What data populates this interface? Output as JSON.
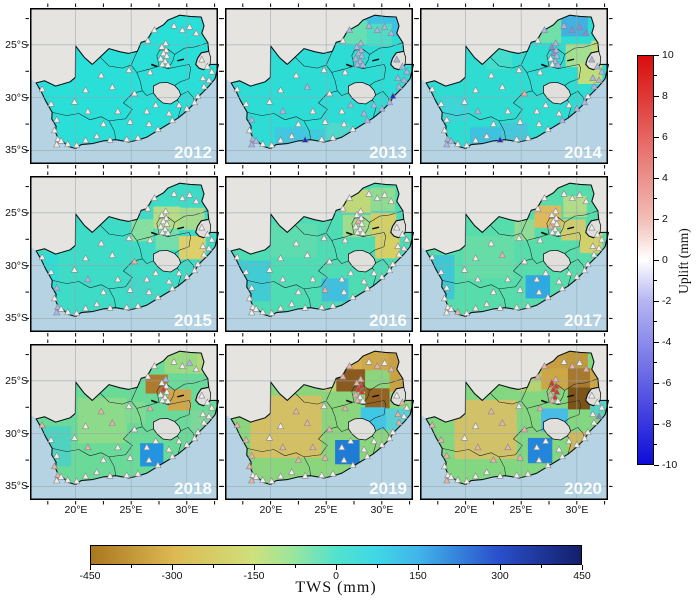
{
  "row_axis_labels": [
    "25°S",
    "30°S",
    "35°S"
  ],
  "col_axis_labels": [
    "20°E",
    "25°E",
    "30°E"
  ],
  "colors": {
    "ocean": "#b5d3e3",
    "neighbor_land": "#e5e4e0",
    "enclave_land": "#e0dfdb",
    "country_border": "#0b1418",
    "province_border": "#1c2428",
    "grid_line": "#97a3ad",
    "panel_frame": "#000000",
    "year_label": "rgba(255,255,255,0.92)",
    "station_stroke": "#87878a"
  },
  "station_palette": {
    "W": "#f1efe9",
    "L": "#a9b6e8",
    "P": "#8090dc",
    "B": "#1c2ec8",
    "K": "#e8b2a4",
    "R": "#d63824",
    "V": "#7788cc"
  },
  "stations": [
    [
      17.0,
      29.2
    ],
    [
      17.8,
      30.6
    ],
    [
      18.3,
      32.1
    ],
    [
      18.1,
      33.1
    ],
    [
      18.4,
      33.95
    ],
    [
      18.7,
      34.1
    ],
    [
      18.3,
      34.45
    ],
    [
      19.3,
      34.4
    ],
    [
      20.1,
      34.5
    ],
    [
      20.9,
      34.05
    ],
    [
      21.9,
      33.65
    ],
    [
      23.1,
      34.0
    ],
    [
      24.6,
      33.95
    ],
    [
      25.6,
      33.8
    ],
    [
      27.4,
      33.0
    ],
    [
      28.7,
      32.15
    ],
    [
      30.0,
      31.05
    ],
    [
      30.7,
      30.45
    ],
    [
      31.0,
      29.85
    ],
    [
      31.55,
      28.95
    ],
    [
      32.0,
      28.35
    ],
    [
      31.45,
      28.15
    ],
    [
      32.25,
      27.55
    ],
    [
      31.85,
      27.05
    ],
    [
      31.35,
      26.4
    ],
    [
      30.85,
      23.9
    ],
    [
      30.25,
      23.3
    ],
    [
      29.6,
      23.6
    ],
    [
      28.85,
      23.2
    ],
    [
      27.1,
      23.6
    ],
    [
      26.5,
      24.6
    ],
    [
      28.1,
      24.85
    ],
    [
      27.75,
      25.2
    ],
    [
      28.15,
      25.5
    ],
    [
      27.9,
      25.8
    ],
    [
      28.2,
      26.05
    ],
    [
      27.65,
      26.3
    ],
    [
      28.05,
      26.55
    ],
    [
      27.8,
      26.85
    ],
    [
      28.3,
      26.9
    ],
    [
      26.7,
      27.6
    ],
    [
      24.8,
      27.4
    ],
    [
      22.3,
      27.9
    ],
    [
      20.9,
      29.3
    ],
    [
      23.3,
      29.0
    ],
    [
      25.3,
      29.6
    ],
    [
      21.1,
      31.3
    ],
    [
      23.8,
      31.3
    ],
    [
      26.4,
      31.3
    ],
    [
      24.9,
      32.3
    ],
    [
      22.5,
      32.5
    ],
    [
      27.2,
      30.7
    ],
    [
      29.3,
      30.7
    ],
    [
      28.4,
      31.5
    ],
    [
      26.6,
      32.5
    ],
    [
      19.9,
      30.4
    ]
  ],
  "panels": [
    {
      "year": "2012",
      "base": "#29dfd8",
      "cells": [],
      "tri": {}
    },
    {
      "year": "2013",
      "base": "#2cdcd5",
      "cells": [
        [
          28.6,
          21.7,
          32.8,
          24.2,
          "#3ec2e2"
        ],
        [
          26.4,
          22.7,
          28.7,
          24.9,
          "#66dfb2"
        ],
        [
          28.7,
          23.0,
          30.9,
          25.1,
          "#4fdcc4"
        ],
        [
          20.4,
          32.8,
          23.1,
          35.3,
          "#43c6e0"
        ],
        [
          24.9,
          32.4,
          27.2,
          34.9,
          "#4fd8cc"
        ],
        [
          23.0,
          33.0,
          24.9,
          35.2,
          "#3eccdc"
        ]
      ],
      "tri": {
        "L": [
          2,
          4,
          5,
          6,
          15,
          16,
          17,
          19,
          20,
          21,
          22,
          23,
          24,
          25,
          26,
          27,
          28,
          29,
          31,
          32,
          33,
          34,
          35,
          36,
          37,
          38,
          39,
          44,
          46,
          51,
          52,
          53
        ],
        "B": [
          18,
          11
        ]
      }
    },
    {
      "year": "2014",
      "base": "#2fdcd2",
      "cells": [
        [
          28.6,
          21.7,
          31.0,
          24.2,
          "#42b0e0"
        ],
        [
          26.3,
          22.6,
          28.6,
          24.8,
          "#70dfa8"
        ],
        [
          29.0,
          24.9,
          31.3,
          27.1,
          "#a4de90"
        ],
        [
          31.3,
          24.6,
          32.7,
          26.7,
          "#c6dc78"
        ],
        [
          30.1,
          26.7,
          32.3,
          28.7,
          "#bfdd7e"
        ],
        [
          20.4,
          32.8,
          23.2,
          35.3,
          "#3fc2e0"
        ],
        [
          23.2,
          32.4,
          25.6,
          34.9,
          "#47c8da"
        ],
        [
          21.8,
          25.0,
          24.2,
          27.3,
          "#43ddcc"
        ],
        [
          17.9,
          29.9,
          20.3,
          32.2,
          "#3fd4d8"
        ]
      ],
      "tri": {
        "L": [
          4,
          5,
          6,
          15,
          16,
          17,
          19,
          20,
          21,
          22,
          23,
          24,
          28,
          29,
          31,
          33,
          35,
          37,
          39,
          46
        ],
        "P": [
          25,
          26,
          27,
          32,
          34
        ],
        "K": [
          45
        ],
        "B": [
          11
        ]
      }
    },
    {
      "year": "2015",
      "base": "#3edcc6",
      "cells": [
        [
          29.3,
          27.2,
          31.7,
          29.4,
          "#ddd06a"
        ],
        [
          27.0,
          24.4,
          29.4,
          26.5,
          "#b7dc86"
        ],
        [
          29.4,
          24.5,
          31.6,
          26.6,
          "#a6dc8e"
        ],
        [
          25.0,
          25.6,
          27.0,
          27.7,
          "#86dfa0"
        ],
        [
          27.2,
          26.5,
          29.3,
          28.5,
          "#74dfaa"
        ],
        [
          16.5,
          28.9,
          18.4,
          33.1,
          "#30dcd4"
        ],
        [
          24.7,
          31.1,
          27.0,
          33.3,
          "#46d6c8"
        ]
      ],
      "tri": {
        "L": [
          2,
          4,
          6,
          46
        ],
        "K": [
          45
        ]
      }
    },
    {
      "year": "2016",
      "base": "#4edcb5",
      "cells": [
        [
          26.4,
          22.8,
          29.0,
          25.0,
          "#c0d87a"
        ],
        [
          29.0,
          22.6,
          31.2,
          24.8,
          "#8edc92"
        ],
        [
          29.0,
          25.0,
          31.3,
          27.2,
          "#d3cf68"
        ],
        [
          29.4,
          27.2,
          31.6,
          29.3,
          "#d6cf64"
        ],
        [
          24.6,
          31.2,
          27.0,
          33.4,
          "#40c0de"
        ],
        [
          17.0,
          29.5,
          20.0,
          33.4,
          "#40ccd2"
        ],
        [
          20.0,
          26.0,
          24.2,
          29.2,
          "#5edcb0"
        ],
        [
          26.5,
          25.2,
          29.0,
          27.3,
          "#a0dc8e"
        ]
      ],
      "tri": {
        "K": [
          34,
          49
        ]
      }
    },
    {
      "year": "2017",
      "base": "#57dcab",
      "cells": [
        [
          26.2,
          24.3,
          28.6,
          26.4,
          "#dfba5c"
        ],
        [
          28.6,
          25.6,
          30.8,
          27.6,
          "#cdcc70"
        ],
        [
          30.3,
          26.8,
          32.3,
          28.8,
          "#d2d06a"
        ],
        [
          28.8,
          23.4,
          30.9,
          25.4,
          "#b2dc88"
        ],
        [
          25.4,
          30.9,
          27.6,
          33.1,
          "#2fa9e2"
        ],
        [
          16.5,
          29.0,
          19.0,
          33.2,
          "#3fc8d4"
        ],
        [
          19.8,
          27.2,
          24.4,
          31.2,
          "#68dca6"
        ],
        [
          24.4,
          25.6,
          26.2,
          27.6,
          "#90dc96"
        ]
      ],
      "tri": {
        "K": [
          36,
          44,
          7
        ]
      }
    },
    {
      "year": "2018",
      "base": "#69da97",
      "cells": [
        [
          26.3,
          24.4,
          28.3,
          26.2,
          "#ae7a2e"
        ],
        [
          28.3,
          25.8,
          30.4,
          27.8,
          "#d0a64c"
        ],
        [
          28.0,
          21.8,
          30.9,
          24.3,
          "#9cda82"
        ],
        [
          30.9,
          21.8,
          32.7,
          24.3,
          "#b4d87c"
        ],
        [
          25.8,
          30.9,
          27.9,
          33.1,
          "#2394e0"
        ],
        [
          20.2,
          26.6,
          24.6,
          30.9,
          "#8dda8b"
        ],
        [
          16.8,
          29.3,
          19.6,
          33.1,
          "#50d2c0"
        ],
        [
          30.4,
          27.8,
          32.4,
          29.7,
          "#7ed79a"
        ],
        [
          24.4,
          27.0,
          26.3,
          29.0,
          "#7fda92"
        ]
      ],
      "tri": {
        "K": [
          0,
          3,
          4,
          40,
          42,
          44,
          46
        ],
        "R": [
          34
        ],
        "L": [
          26,
          31
        ]
      }
    },
    {
      "year": "2019",
      "base": "#8bd67d",
      "cells": [
        [
          24.8,
          21.8,
          28.2,
          24.0,
          "#d7ae50"
        ],
        [
          28.2,
          21.8,
          30.6,
          24.0,
          "#cfa84a"
        ],
        [
          30.6,
          21.8,
          32.7,
          24.3,
          "#c7a046"
        ],
        [
          25.9,
          23.9,
          28.5,
          26.0,
          "#8a5a20"
        ],
        [
          28.5,
          25.7,
          30.7,
          27.6,
          "#956222"
        ],
        [
          30.7,
          23.9,
          32.7,
          26.0,
          "#c9a242"
        ],
        [
          18.2,
          26.4,
          24.6,
          32.3,
          "#d4c064"
        ],
        [
          28.1,
          27.5,
          30.4,
          29.6,
          "#3fc8e6"
        ],
        [
          30.4,
          27.6,
          32.5,
          29.7,
          "#58d0d6"
        ],
        [
          25.8,
          30.6,
          28.0,
          32.9,
          "#1e7cd6"
        ],
        [
          24.6,
          24.0,
          25.9,
          26.0,
          "#b8d070"
        ]
      ],
      "tri": {
        "R": [
          33,
          34,
          35
        ],
        "K": [
          0,
          1,
          2,
          3,
          6,
          19,
          21,
          23,
          25,
          27,
          29,
          30,
          31,
          32,
          36,
          38,
          40,
          42,
          44,
          45,
          46,
          47,
          49,
          50
        ]
      }
    },
    {
      "year": "2020",
      "base": "#83d781",
      "cells": [
        [
          27.0,
          21.8,
          29.0,
          24.0,
          "#c89e40"
        ],
        [
          29.0,
          21.8,
          31.0,
          24.0,
          "#c0983e"
        ],
        [
          26.8,
          23.8,
          29.2,
          25.8,
          "#cda646"
        ],
        [
          29.2,
          23.8,
          31.2,
          25.6,
          "#a97830"
        ],
        [
          29.2,
          25.6,
          31.2,
          27.7,
          "#7d5418"
        ],
        [
          31.2,
          23.8,
          32.7,
          26.2,
          "#cda544"
        ],
        [
          19.0,
          26.8,
          24.6,
          32.4,
          "#d1c168"
        ],
        [
          26.8,
          27.6,
          29.2,
          29.8,
          "#48bce4"
        ],
        [
          25.6,
          30.4,
          27.8,
          32.8,
          "#2386da"
        ],
        [
          29.2,
          29.8,
          31.2,
          31.8,
          "#ccba60"
        ],
        [
          31.2,
          26.2,
          32.7,
          28.2,
          "#56d2c6"
        ],
        [
          24.6,
          23.8,
          26.8,
          26.0,
          "#b2d274"
        ]
      ],
      "tri": {
        "R": [
          32,
          33,
          34,
          35,
          37
        ],
        "K": [
          0,
          1,
          2,
          6,
          25,
          27,
          29,
          30,
          31,
          36,
          38,
          40,
          42,
          44,
          45,
          46,
          47,
          49,
          50
        ],
        "V": [
          20
        ]
      }
    }
  ],
  "uplift_colorbar": {
    "label": "Uplift (mm)",
    "tick_labels": [
      "10",
      "8",
      "6",
      "4",
      "2",
      "0",
      "-2",
      "-4",
      "-6",
      "-8",
      "-10"
    ],
    "gradient": [
      "#d90d0d",
      "#f2beb6",
      "#ffffff",
      "#b6b6f2",
      "#0d0dd9"
    ]
  },
  "tws_colorbar": {
    "label": "TWS (mm)",
    "tick_labels": [
      "-450",
      "-300",
      "-150",
      "0",
      "150",
      "300",
      "450"
    ],
    "gradient_stops": [
      [
        "0%",
        "#a9771f"
      ],
      [
        "17%",
        "#ddb952"
      ],
      [
        "33%",
        "#cfe07c"
      ],
      [
        "41%",
        "#9ce69c"
      ],
      [
        "50%",
        "#52e3cc"
      ],
      [
        "58%",
        "#3fd8e6"
      ],
      [
        "67%",
        "#41b4ea"
      ],
      [
        "83%",
        "#2a50cc"
      ],
      [
        "100%",
        "#131f6b"
      ]
    ]
  }
}
